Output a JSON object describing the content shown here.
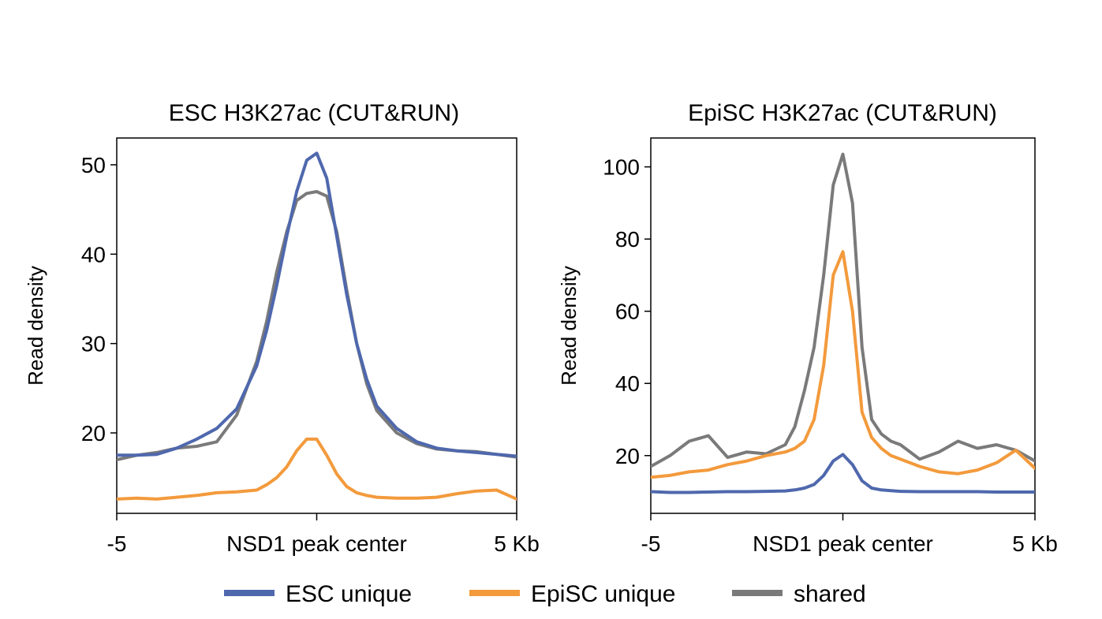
{
  "colors": {
    "esc": "#4f68ad",
    "episc": "#f39a3c",
    "shared": "#7a7a7a",
    "axis": "#000000"
  },
  "legend": [
    {
      "key": "esc",
      "label": "ESC unique",
      "color": "#4f68ad"
    },
    {
      "key": "episc",
      "label": "EpiSC unique",
      "color": "#f39a3c"
    },
    {
      "key": "shared",
      "label": "shared",
      "color": "#7a7a7a"
    }
  ],
  "chart_data": [
    {
      "type": "line",
      "title": "ESC H3K27ac (CUT&RUN)",
      "ylabel": "Read density",
      "xlabel": "NSD1 peak center",
      "x_tick_labels": [
        "-5",
        "NSD1 peak center",
        "5 Kb"
      ],
      "xlim": [
        -5,
        5
      ],
      "ylim": [
        11,
        53
      ],
      "yticks": [
        20,
        30,
        40,
        50
      ],
      "grid": false,
      "legend_placement": "bottom",
      "x": [
        -5,
        -4.5,
        -4,
        -3.5,
        -3,
        -2.5,
        -2,
        -1.5,
        -1.25,
        -1,
        -0.75,
        -0.5,
        -0.25,
        0,
        0.25,
        0.5,
        0.75,
        1,
        1.25,
        1.5,
        2,
        2.5,
        3,
        3.5,
        4,
        4.5,
        5
      ],
      "series": [
        {
          "name": "ESC unique",
          "key": "esc",
          "values": [
            17.5,
            17.5,
            17.6,
            18.3,
            19.3,
            20.5,
            22.7,
            27.5,
            31.5,
            36.5,
            42.0,
            47.0,
            50.5,
            51.3,
            48.5,
            42.0,
            35.5,
            30.0,
            26.0,
            23.0,
            20.5,
            19.0,
            18.3,
            18.0,
            17.8,
            17.6,
            17.4
          ]
        },
        {
          "name": "shared",
          "key": "shared",
          "values": [
            17.0,
            17.5,
            17.8,
            18.3,
            18.5,
            19.0,
            22.0,
            28.0,
            32.5,
            38.0,
            42.5,
            46.0,
            46.8,
            47.0,
            46.5,
            42.5,
            36.0,
            30.0,
            25.5,
            22.5,
            20.0,
            18.8,
            18.2,
            18.0,
            17.9,
            17.6,
            17.3
          ]
        },
        {
          "name": "EpiSC unique",
          "key": "episc",
          "values": [
            12.6,
            12.7,
            12.6,
            12.8,
            13.0,
            13.3,
            13.4,
            13.6,
            14.2,
            15.0,
            16.2,
            18.0,
            19.3,
            19.3,
            17.5,
            15.4,
            14.0,
            13.3,
            13.0,
            12.8,
            12.7,
            12.7,
            12.8,
            13.2,
            13.5,
            13.6,
            12.6
          ]
        }
      ]
    },
    {
      "type": "line",
      "title": "EpiSC H3K27ac (CUT&RUN)",
      "ylabel": "Read density",
      "xlabel": "NSD1 peak center",
      "x_tick_labels": [
        "-5",
        "NSD1 peak center",
        "5 Kb"
      ],
      "xlim": [
        -5,
        5
      ],
      "ylim": [
        4,
        108
      ],
      "yticks": [
        20,
        40,
        60,
        80,
        100
      ],
      "grid": false,
      "legend_placement": "bottom",
      "x": [
        -5,
        -4.5,
        -4,
        -3.5,
        -3,
        -2.5,
        -2,
        -1.5,
        -1.25,
        -1,
        -0.75,
        -0.5,
        -0.25,
        0,
        0.25,
        0.5,
        0.75,
        1,
        1.25,
        1.5,
        2,
        2.5,
        3,
        3.5,
        4,
        4.5,
        5
      ],
      "series": [
        {
          "name": "shared",
          "key": "shared",
          "values": [
            17.0,
            20.0,
            24.0,
            25.5,
            19.5,
            21.0,
            20.5,
            23.0,
            28.0,
            38.0,
            50.0,
            70.0,
            95.0,
            103.5,
            90.0,
            50.0,
            30.0,
            26.0,
            24.0,
            23.0,
            19.0,
            21.0,
            24.0,
            22.0,
            23.0,
            21.5,
            18.5
          ]
        },
        {
          "name": "EpiSC unique",
          "key": "episc",
          "values": [
            14.0,
            14.5,
            15.5,
            16.0,
            17.5,
            18.5,
            20.0,
            21.0,
            22.0,
            24.0,
            30.0,
            45.0,
            70.0,
            76.5,
            60.0,
            32.0,
            25.0,
            22.0,
            20.0,
            19.0,
            17.0,
            15.5,
            15.0,
            16.0,
            18.0,
            21.5,
            16.5
          ]
        },
        {
          "name": "ESC unique",
          "key": "esc",
          "values": [
            10.0,
            9.8,
            9.8,
            9.9,
            10.0,
            10.0,
            10.1,
            10.2,
            10.5,
            11.0,
            12.0,
            14.5,
            18.5,
            20.3,
            17.5,
            13.0,
            11.0,
            10.5,
            10.3,
            10.1,
            10.0,
            10.0,
            10.0,
            10.0,
            9.9,
            9.9,
            9.9
          ]
        }
      ]
    }
  ]
}
